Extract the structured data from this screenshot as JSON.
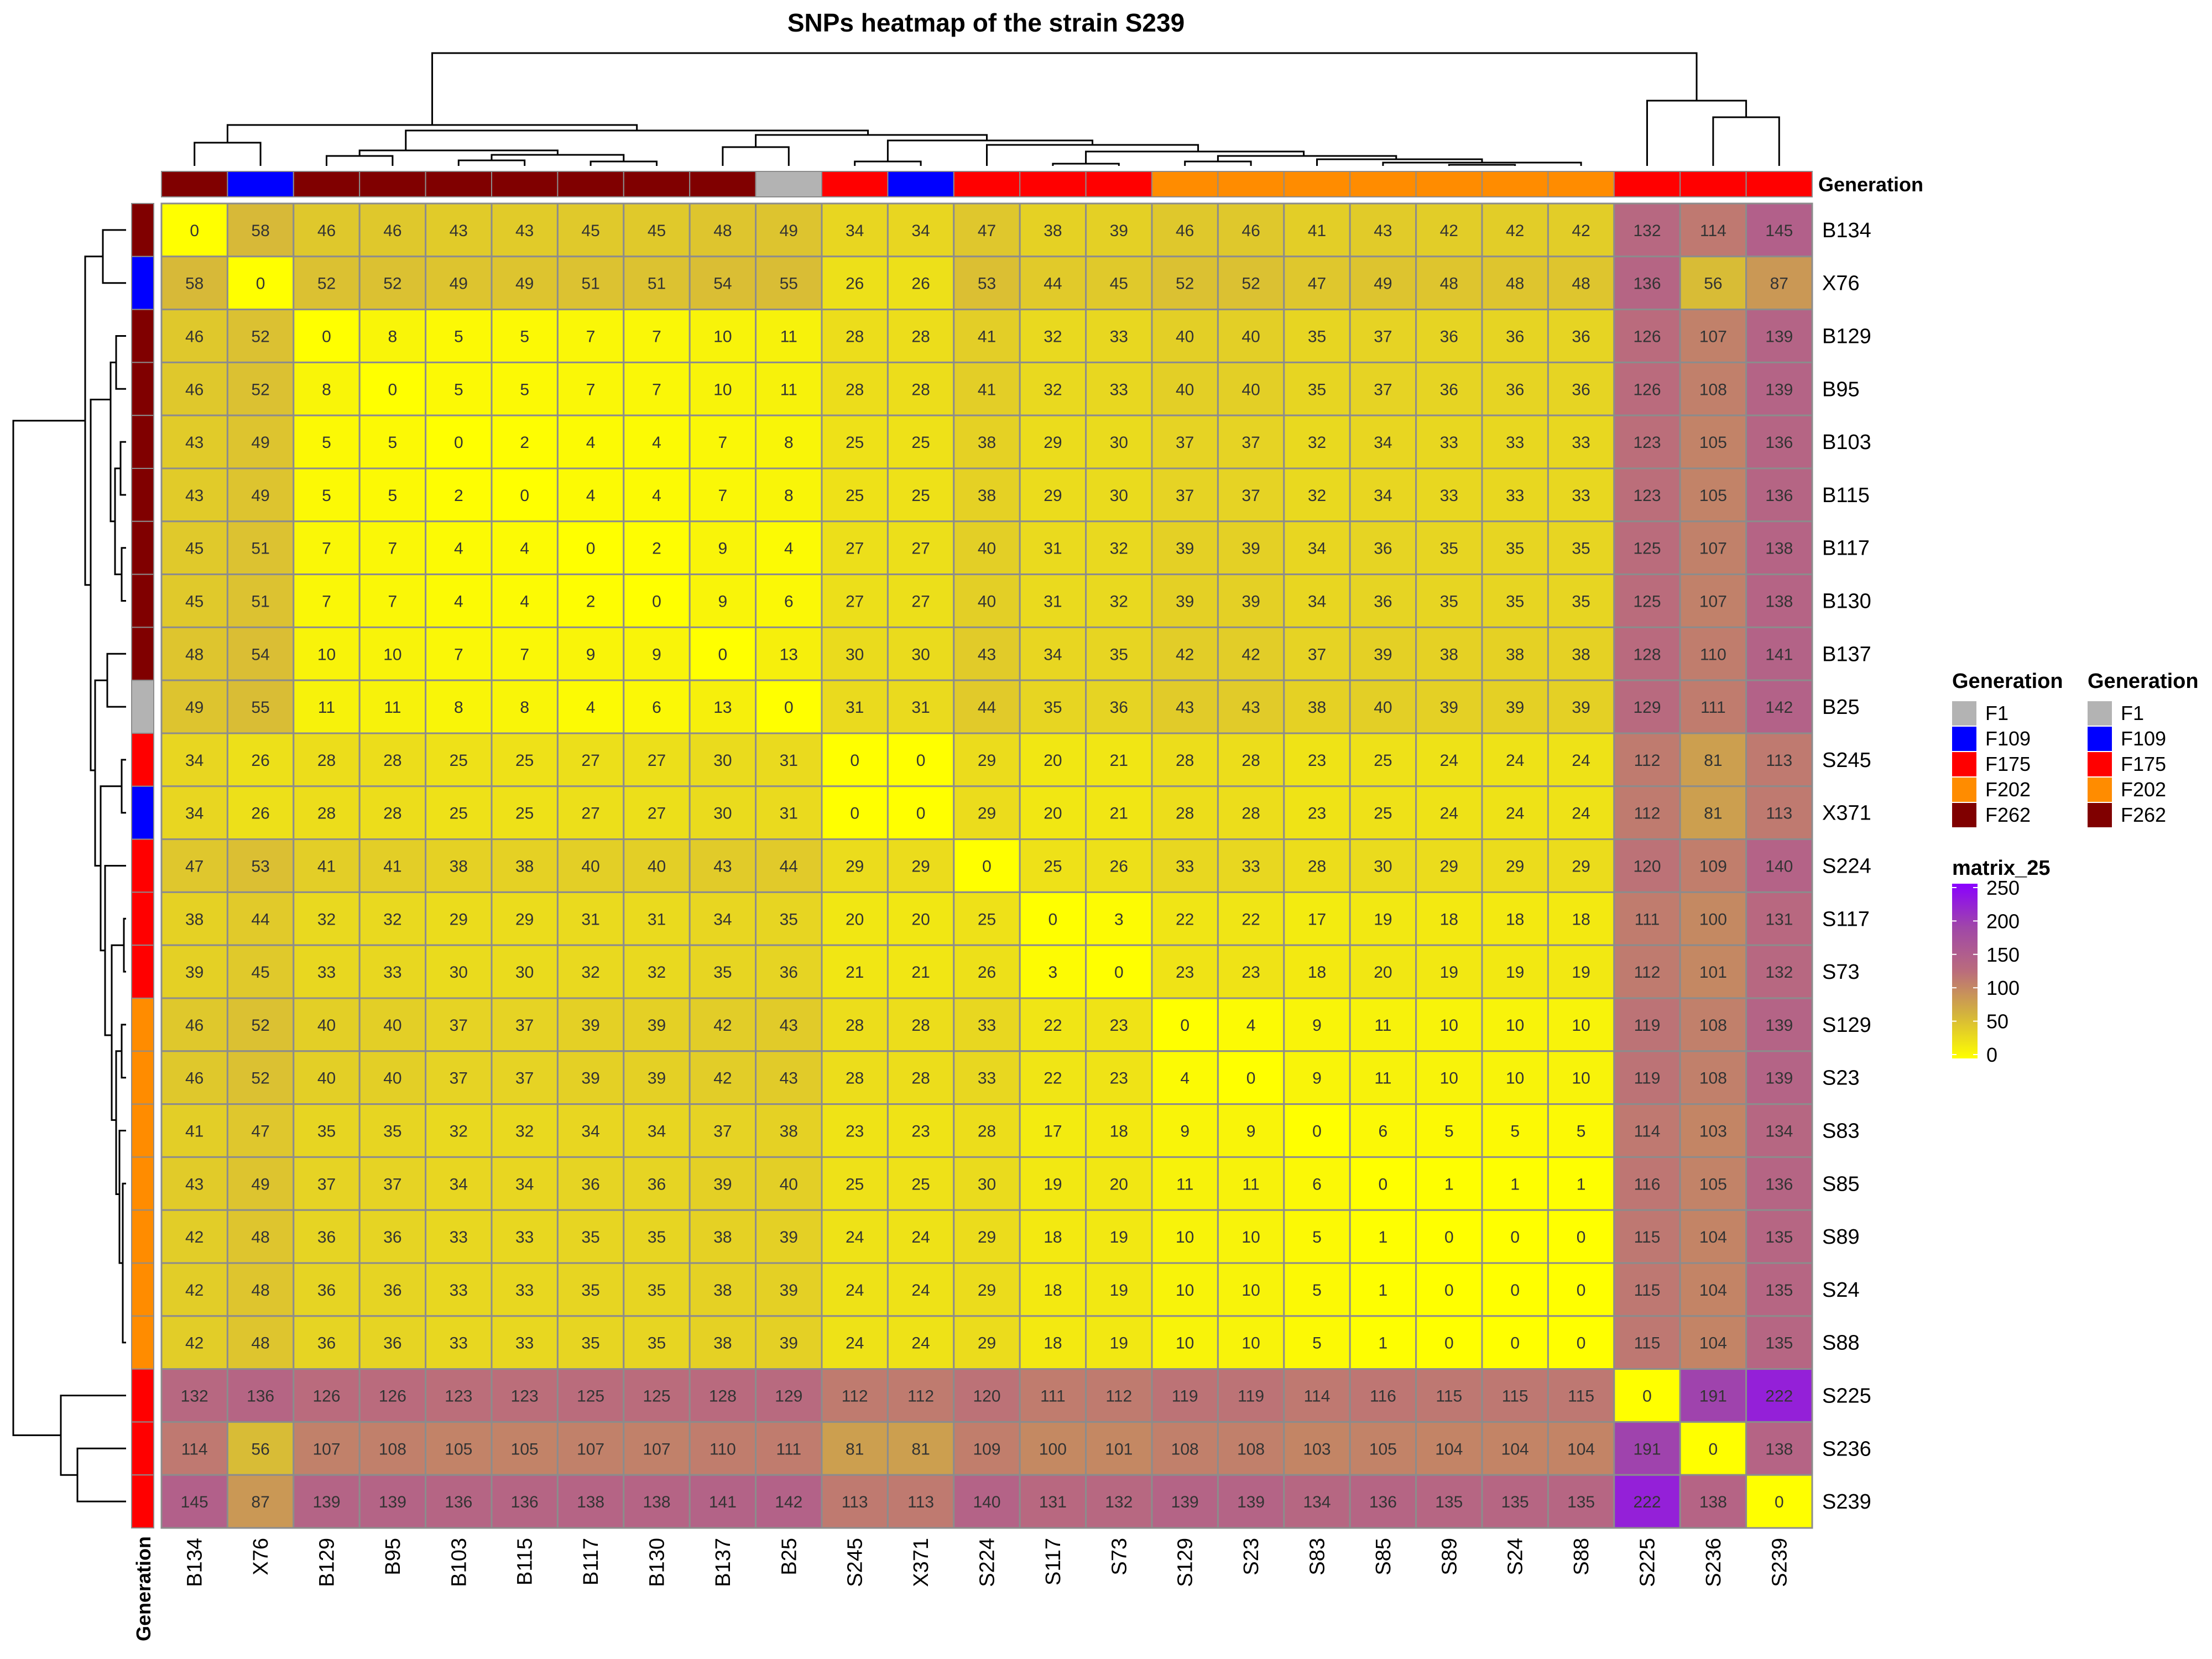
{
  "chart_data": {
    "type": "heatmap",
    "title": "SNPs heatmap of the strain S239",
    "rows": [
      "B134",
      "X76",
      "B129",
      "B95",
      "B103",
      "B115",
      "B117",
      "B130",
      "B137",
      "B25",
      "S245",
      "X371",
      "S224",
      "S117",
      "S73",
      "S129",
      "S23",
      "S83",
      "S85",
      "S89",
      "S24",
      "S88",
      "S225",
      "S236",
      "S239"
    ],
    "columns": [
      "B134",
      "X76",
      "B129",
      "B95",
      "B103",
      "B115",
      "B117",
      "B130",
      "B137",
      "B25",
      "S245",
      "X371",
      "S224",
      "S117",
      "S73",
      "S129",
      "S23",
      "S83",
      "S85",
      "S89",
      "S24",
      "S88",
      "S225",
      "S236",
      "S239"
    ],
    "values": [
      [
        0,
        58,
        46,
        46,
        43,
        43,
        45,
        45,
        48,
        49,
        34,
        34,
        47,
        38,
        39,
        46,
        46,
        41,
        43,
        42,
        42,
        42,
        132,
        114,
        145
      ],
      [
        58,
        0,
        52,
        52,
        49,
        49,
        51,
        51,
        54,
        55,
        26,
        26,
        53,
        44,
        45,
        52,
        52,
        47,
        49,
        48,
        48,
        48,
        136,
        56,
        87
      ],
      [
        46,
        52,
        0,
        8,
        5,
        5,
        7,
        7,
        10,
        11,
        28,
        28,
        41,
        32,
        33,
        40,
        40,
        35,
        37,
        36,
        36,
        36,
        126,
        107,
        139
      ],
      [
        46,
        52,
        8,
        0,
        5,
        5,
        7,
        7,
        10,
        11,
        28,
        28,
        41,
        32,
        33,
        40,
        40,
        35,
        37,
        36,
        36,
        36,
        126,
        108,
        139
      ],
      [
        43,
        49,
        5,
        5,
        0,
        2,
        4,
        4,
        7,
        8,
        25,
        25,
        38,
        29,
        30,
        37,
        37,
        32,
        34,
        33,
        33,
        33,
        123,
        105,
        136
      ],
      [
        43,
        49,
        5,
        5,
        2,
        0,
        4,
        4,
        7,
        8,
        25,
        25,
        38,
        29,
        30,
        37,
        37,
        32,
        34,
        33,
        33,
        33,
        123,
        105,
        136
      ],
      [
        45,
        51,
        7,
        7,
        4,
        4,
        0,
        2,
        9,
        4,
        27,
        27,
        40,
        31,
        32,
        39,
        39,
        34,
        36,
        35,
        35,
        35,
        125,
        107,
        138
      ],
      [
        45,
        51,
        7,
        7,
        4,
        4,
        2,
        0,
        9,
        6,
        27,
        27,
        40,
        31,
        32,
        39,
        39,
        34,
        36,
        35,
        35,
        35,
        125,
        107,
        138
      ],
      [
        48,
        54,
        10,
        10,
        7,
        7,
        9,
        9,
        0,
        13,
        30,
        30,
        43,
        34,
        35,
        42,
        42,
        37,
        39,
        38,
        38,
        38,
        128,
        110,
        141
      ],
      [
        49,
        55,
        11,
        11,
        8,
        8,
        4,
        6,
        13,
        0,
        31,
        31,
        44,
        35,
        36,
        43,
        43,
        38,
        40,
        39,
        39,
        39,
        129,
        111,
        142
      ],
      [
        34,
        26,
        28,
        28,
        25,
        25,
        27,
        27,
        30,
        31,
        0,
        0,
        29,
        20,
        21,
        28,
        28,
        23,
        25,
        24,
        24,
        24,
        112,
        81,
        113
      ],
      [
        34,
        26,
        28,
        28,
        25,
        25,
        27,
        27,
        30,
        31,
        0,
        0,
        29,
        20,
        21,
        28,
        28,
        23,
        25,
        24,
        24,
        24,
        112,
        81,
        113
      ],
      [
        47,
        53,
        41,
        41,
        38,
        38,
        40,
        40,
        43,
        44,
        29,
        29,
        0,
        25,
        26,
        33,
        33,
        28,
        30,
        29,
        29,
        29,
        120,
        109,
        140
      ],
      [
        38,
        44,
        32,
        32,
        29,
        29,
        31,
        31,
        34,
        35,
        20,
        20,
        25,
        0,
        3,
        22,
        22,
        17,
        19,
        18,
        18,
        18,
        111,
        100,
        131
      ],
      [
        39,
        45,
        33,
        33,
        30,
        30,
        32,
        32,
        35,
        36,
        21,
        21,
        26,
        3,
        0,
        23,
        23,
        18,
        20,
        19,
        19,
        19,
        112,
        101,
        132
      ],
      [
        46,
        52,
        40,
        40,
        37,
        37,
        39,
        39,
        42,
        43,
        28,
        28,
        33,
        22,
        23,
        0,
        4,
        9,
        11,
        10,
        10,
        10,
        119,
        108,
        139
      ],
      [
        46,
        52,
        40,
        40,
        37,
        37,
        39,
        39,
        42,
        43,
        28,
        28,
        33,
        22,
        23,
        4,
        0,
        9,
        11,
        10,
        10,
        10,
        119,
        108,
        139
      ],
      [
        41,
        47,
        35,
        35,
        32,
        32,
        34,
        34,
        37,
        38,
        23,
        23,
        28,
        17,
        18,
        9,
        9,
        0,
        6,
        5,
        5,
        5,
        114,
        103,
        134
      ],
      [
        43,
        49,
        37,
        37,
        34,
        34,
        36,
        36,
        39,
        40,
        25,
        25,
        30,
        19,
        20,
        11,
        11,
        6,
        0,
        1,
        1,
        1,
        116,
        105,
        136
      ],
      [
        42,
        48,
        36,
        36,
        33,
        33,
        35,
        35,
        38,
        39,
        24,
        24,
        29,
        18,
        19,
        10,
        10,
        5,
        1,
        0,
        0,
        0,
        115,
        104,
        135
      ],
      [
        42,
        48,
        36,
        36,
        33,
        33,
        35,
        35,
        38,
        39,
        24,
        24,
        29,
        18,
        19,
        10,
        10,
        5,
        1,
        0,
        0,
        0,
        115,
        104,
        135
      ],
      [
        42,
        48,
        36,
        36,
        33,
        33,
        35,
        35,
        38,
        39,
        24,
        24,
        29,
        18,
        19,
        10,
        10,
        5,
        1,
        0,
        0,
        0,
        115,
        104,
        135
      ],
      [
        132,
        136,
        126,
        126,
        123,
        123,
        125,
        125,
        128,
        129,
        112,
        112,
        120,
        111,
        112,
        119,
        119,
        114,
        116,
        115,
        115,
        115,
        0,
        191,
        222
      ],
      [
        114,
        56,
        107,
        108,
        105,
        105,
        107,
        107,
        110,
        111,
        81,
        81,
        109,
        100,
        101,
        108,
        108,
        103,
        105,
        104,
        104,
        104,
        191,
        0,
        138
      ],
      [
        145,
        87,
        139,
        139,
        136,
        136,
        138,
        138,
        141,
        142,
        113,
        113,
        140,
        131,
        132,
        139,
        139,
        134,
        136,
        135,
        135,
        135,
        222,
        138,
        0
      ]
    ],
    "generation": [
      "F262",
      "F109",
      "F262",
      "F262",
      "F262",
      "F262",
      "F262",
      "F262",
      "F262",
      "F1",
      "F175",
      "F109",
      "F175",
      "F175",
      "F175",
      "F202",
      "F202",
      "F202",
      "F202",
      "F202",
      "F202",
      "F202",
      "F175",
      "F175",
      "F175"
    ],
    "generation_colors": {
      "F1": "#b3b3b3",
      "F109": "#0000ff",
      "F175": "#ff0000",
      "F202": "#ff8c00",
      "F262": "#800000"
    },
    "annotation_label": "Generation",
    "legends": [
      {
        "title": "Generation",
        "entries": [
          "F1",
          "F109",
          "F175",
          "F202",
          "F262"
        ]
      },
      {
        "title": "Generation",
        "entries": [
          "F1",
          "F109",
          "F175",
          "F202",
          "F262"
        ]
      }
    ],
    "colorbar": {
      "title": "matrix_25",
      "ticks": [
        250,
        200,
        150,
        100,
        50,
        0
      ],
      "range": [
        0,
        250
      ],
      "colors": [
        "#ffff00",
        "#d4b43c",
        "#ba6c7c",
        "#a047a8",
        "#8a00ff"
      ]
    },
    "dendrogram": "hierarchical clustering on rows and columns"
  }
}
